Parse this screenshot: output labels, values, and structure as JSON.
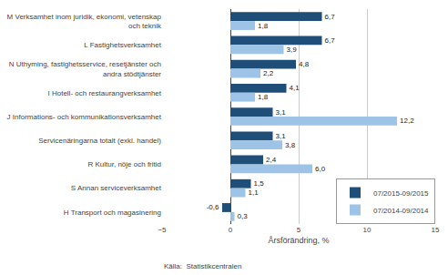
{
  "chart_data": {
    "type": "bar",
    "orientation": "horizontal",
    "categories": [
      "M Verksamhet inom juridik, ekonomi, vetenskap\noch teknik",
      "L Fastighetsverksamhet",
      "N Uthyming, fastighetsservice, resetjänster och\nandra stödtjänster",
      "I Hotell- och restaurangverksamhet",
      "J Informations- och kommunikationsverksamhet",
      "Servicenäringarna totalt (exkl. handel)",
      "R Kultur, nöje och fritid",
      "S Annan serviceverksamhet",
      "H Transport och magasinering"
    ],
    "series": [
      {
        "name": "07/2015-09/2015",
        "color": "#1F4E79",
        "values": [
          6.7,
          6.7,
          4.8,
          4.1,
          3.1,
          3.1,
          2.4,
          1.5,
          -0.6
        ],
        "value_labels": [
          "6,7",
          "6,7",
          "4,8",
          "4,1",
          "3,1",
          "3,1",
          "2,4",
          "1,5",
          "-0,6"
        ]
      },
      {
        "name": "07/2014-09/2014",
        "color": "#9DC3E6",
        "values": [
          1.8,
          3.9,
          2.2,
          1.8,
          12.2,
          3.8,
          6.0,
          1.1,
          0.3
        ],
        "value_labels": [
          "1,8",
          "3,9",
          "2,2",
          "1,8",
          "12,2",
          "3,8",
          "6,0",
          "1,1",
          "0,3"
        ]
      }
    ],
    "xlabel": "Årsförändring, %",
    "xlim": [
      -5,
      15
    ],
    "xticks": [
      -5,
      0,
      5,
      10,
      15
    ],
    "grid": true,
    "legend": "lower right",
    "data_labels": true,
    "annotations": [
      "Källa:  Statistikcentralen"
    ]
  }
}
